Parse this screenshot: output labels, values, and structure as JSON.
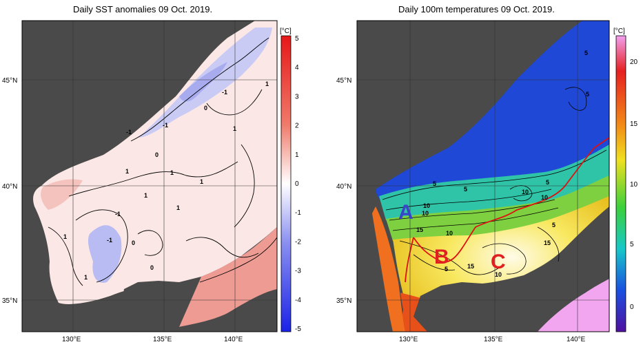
{
  "left_panel": {
    "title": "Daily SST anomalies 09 Oct. 2019.",
    "unit": "[°C]",
    "colorbar_ticks": [
      "5",
      "4",
      "3",
      "2",
      "1",
      "0",
      "-1",
      "-2",
      "-3",
      "-4",
      "-5"
    ],
    "lat_labels": [
      "45°N",
      "40°N",
      "35°N"
    ],
    "lon_labels": [
      "130°E",
      "135°E",
      "140°E"
    ],
    "contour_labels": [
      "-1",
      "-1",
      "-1",
      "0",
      "0",
      "0",
      "0",
      "1",
      "1",
      "1",
      "1",
      "1",
      "1",
      "1",
      "1",
      "1",
      "-1",
      "-1"
    ],
    "colors": {
      "positive": "#e35a5a",
      "negative": "#5a62e6",
      "land": "#4a4a4a"
    }
  },
  "right_panel": {
    "title": "Daily 100m temperatures 09 Oct. 2019.",
    "unit": "[°C]",
    "colorbar_ticks": [
      "20",
      "15",
      "10",
      "5",
      "0"
    ],
    "lat_labels": [
      "45°N",
      "40°N",
      "35°N"
    ],
    "lon_labels": [
      "130°E",
      "135°E",
      "140°E"
    ],
    "contour_labels": [
      "5",
      "5",
      "5",
      "5",
      "10",
      "10",
      "10",
      "15",
      "15",
      "15",
      "10",
      "5",
      "5",
      "10",
      "10",
      "5"
    ],
    "region_labels": [
      "A",
      "B",
      "C"
    ],
    "colors": {
      "cold": "#1a3bd1",
      "warm": "#f0d020",
      "hot": "#e82020",
      "land": "#4a4a4a",
      "route": "#e01010"
    }
  }
}
